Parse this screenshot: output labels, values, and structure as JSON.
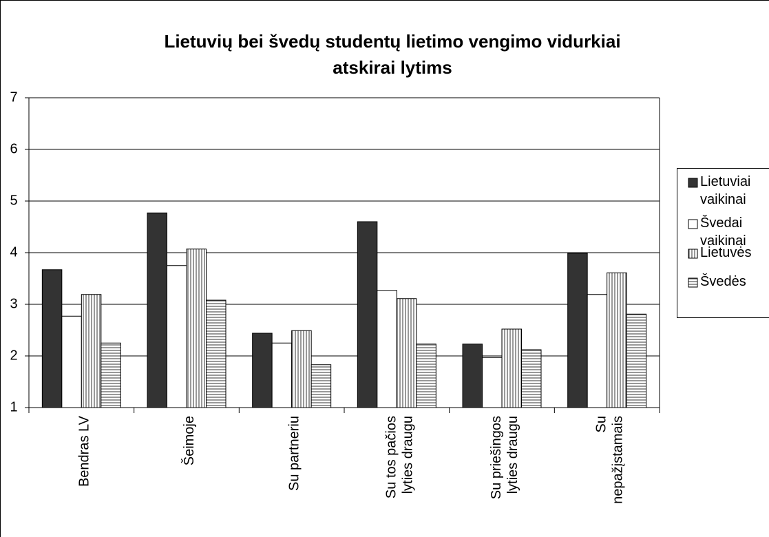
{
  "chart_data": {
    "type": "bar",
    "title": "Lietuvių bei švedų studentų lietimo vengimo vidurkiai\natskirai lytims",
    "categories": [
      "Bendras LV",
      "Šeimoje",
      "Su partneriu",
      "Su tos pačios\nlyties draugu",
      "Su priešingos\nlyties draugu",
      "Su\nnepažįstamais"
    ],
    "series": [
      {
        "name": "Lietuviai\nvaikinai",
        "color": "#333333",
        "pattern": "solid",
        "values": [
          3.67,
          4.77,
          2.44,
          4.6,
          2.23,
          3.99
        ]
      },
      {
        "name": "Švedai\nvaikinai",
        "color": "#ffffff",
        "pattern": "solid",
        "values": [
          2.77,
          3.75,
          2.25,
          3.27,
          1.97,
          3.19
        ]
      },
      {
        "name": "Lietuvės",
        "color": "#b0b0b0",
        "pattern": "vertical",
        "values": [
          3.19,
          4.07,
          2.49,
          3.11,
          2.52,
          3.61
        ]
      },
      {
        "name": "Švedės",
        "color": "#b0b0b0",
        "pattern": "horizontal",
        "values": [
          2.25,
          3.08,
          1.83,
          2.23,
          2.12,
          2.81
        ]
      }
    ],
    "ylim": [
      1,
      7
    ],
    "yticks": [
      1,
      2,
      3,
      4,
      5,
      6,
      7
    ],
    "grid": true,
    "legend": "right"
  }
}
